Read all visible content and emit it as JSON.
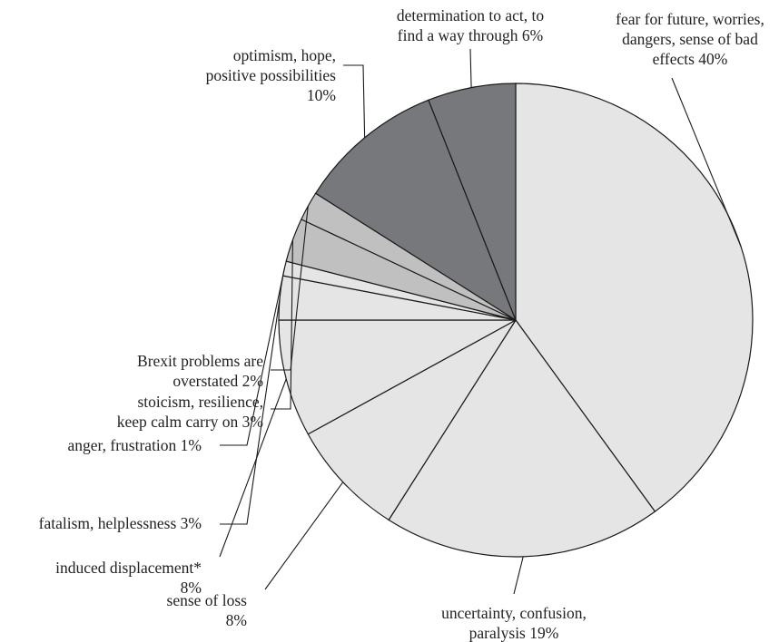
{
  "chart_data": {
    "type": "pie",
    "start_angle_deg": 0,
    "direction": "clockwise",
    "slices": [
      {
        "label": "fear for future, worries, dangers, sense of bad effects",
        "value": 40,
        "value_label": "40%",
        "color": "#e5e5e5"
      },
      {
        "label": "uncertainty, confusion, paralysis",
        "value": 19,
        "value_label": "19%",
        "color": "#e5e5e5"
      },
      {
        "label": "sense of loss",
        "value": 8,
        "value_label": "8%",
        "color": "#e5e5e5"
      },
      {
        "label": "induced displacement*",
        "value": 8,
        "value_label": "8%",
        "color": "#e5e5e5"
      },
      {
        "label": "fatalism, helplessness",
        "value": 3,
        "value_label": "3%",
        "color": "#e5e5e5"
      },
      {
        "label": "anger, frustration",
        "value": 1,
        "value_label": "1%",
        "color": "#e5e5e5"
      },
      {
        "label": "stoicism, resilience, keep calm carry on",
        "value": 3,
        "value_label": "3%",
        "color": "#c0c0c0"
      },
      {
        "label": "Brexit problems are overstated",
        "value": 2,
        "value_label": "2%",
        "color": "#c0c0c0"
      },
      {
        "label": "optimism, hope, positive possibilities",
        "value": 10,
        "value_label": "10%",
        "color": "#77787b"
      },
      {
        "label": "determination to act, to find a way through",
        "value": 6,
        "value_label": "6%",
        "color": "#77787b"
      }
    ],
    "label_lines": [
      [
        "fear for future, worries,",
        "dangers, sense of bad",
        "effects 40%"
      ],
      [
        "uncertainty, confusion,",
        "paralysis 19%"
      ],
      [
        "sense of loss",
        "8%"
      ],
      [
        "induced displacement*",
        "8%"
      ],
      [
        "fatalism, helplessness 3%"
      ],
      [
        "anger, frustration 1%"
      ],
      [
        "stoicism, resilience,",
        "keep calm carry on 3%"
      ],
      [
        "Brexit problems are",
        "overstated 2%"
      ],
      [
        "optimism, hope,",
        "positive possibilities",
        "10%"
      ],
      [
        "determination to act, to",
        "find a way through 6%"
      ]
    ]
  }
}
